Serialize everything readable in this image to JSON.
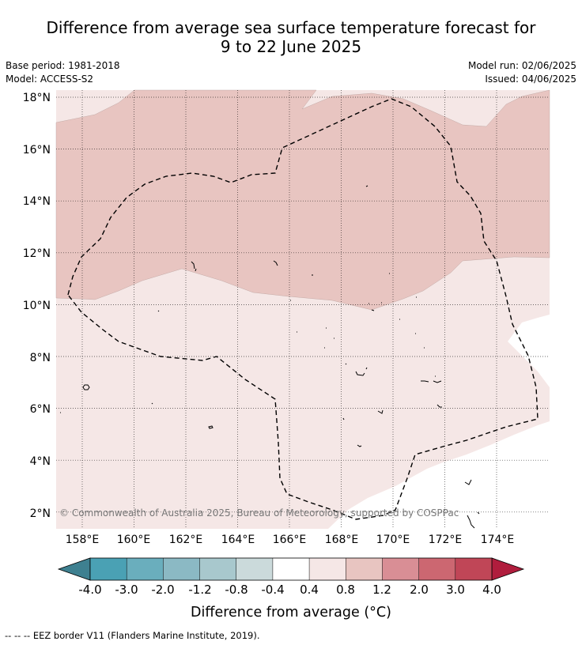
{
  "title": {
    "line1": "Difference from average sea surface temperature forecast for",
    "line2": "9 to 22 June 2025"
  },
  "meta": {
    "base_period": "Base period: 1981-2018",
    "model": "Model: ACCESS-S2",
    "model_run": "Model run: 02/06/2025",
    "issued": "Issued: 04/06/2025"
  },
  "map": {
    "lon_range": [
      157,
      176
    ],
    "lat_range": [
      1.4,
      18.2
    ],
    "lon_ticks": [
      "158°E",
      "160°E",
      "162°E",
      "164°E",
      "166°E",
      "168°E",
      "170°E",
      "172°E",
      "174°E"
    ],
    "lat_ticks": [
      "18°N",
      "16°N",
      "14°N",
      "12°N",
      "10°N",
      "8°N",
      "6°N",
      "4°N",
      "2°N"
    ],
    "copyright": "© Commonwealth of Australia 2025, Bureau of Meteorology, supported by COSPPac",
    "colors": {
      "band_0.4_0.8": "#f5e7e6",
      "band_0.8_1.2": "#e8c5c1",
      "background": "#ffffff"
    }
  },
  "colorbar": {
    "tick_labels": [
      "-4.0",
      "-3.0",
      "-2.0",
      "-1.2",
      "-0.8",
      "-0.4",
      "0.4",
      "0.8",
      "1.2",
      "2.0",
      "3.0",
      "4.0"
    ],
    "colors": [
      "#3e8090",
      "#4aa1b4",
      "#6aaebd",
      "#8bb9c4",
      "#a8c8cd",
      "#cbdadb",
      "#ffffff",
      "#f5e7e6",
      "#e8c5c1",
      "#d98e95",
      "#cc6771",
      "#c04657",
      "#b01d3d"
    ],
    "label": "Difference from average (°C)"
  },
  "legend": {
    "eez": "-- -- -- EEZ border V11 (Flanders Marine Institute, 2019)."
  }
}
